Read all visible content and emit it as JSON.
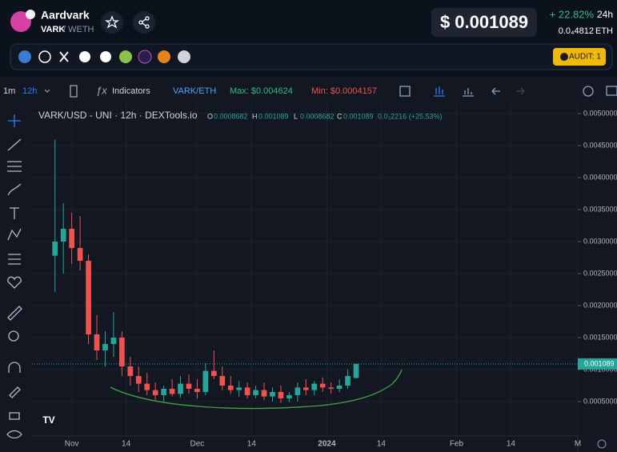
{
  "header": {
    "name": "Aardvark",
    "symbol": "VARK",
    "pair": "/ WETH",
    "price": "$ 0.001089",
    "change": "+ 22.82%",
    "period": "24h",
    "eth_price": "0.0₄4812",
    "eth": "ETH",
    "audit": "AUDIT: 1"
  },
  "toolbar": {
    "interval_1": "1m",
    "interval_2": "12h",
    "indicators": "Indicators",
    "pair": "VARK/ETH",
    "max": "Max: $0.004624",
    "min": "Min: $0.0004157"
  },
  "chart_data": {
    "type": "candlestick",
    "title": "VARK/USD - UNI · 12h · DEXTools.io",
    "ohlc": {
      "o_label": "O",
      "open": 0.0008682,
      "h_label": "H",
      "high": 0.001089,
      "l_label": "L",
      "low": 0.0008682,
      "c_label": "C",
      "close": 0.001089,
      "change": "0.0₃2216 (+25.53%)"
    },
    "last_price": 0.001089,
    "up_color": "#26a69a",
    "down_color": "#ef5350",
    "x": [
      -4,
      -2,
      0,
      2,
      4,
      6,
      8,
      10,
      12,
      14,
      16,
      18,
      20,
      22,
      24,
      26,
      28,
      30,
      32,
      34,
      36,
      38,
      40,
      42,
      44,
      46,
      48,
      50,
      52,
      54,
      56,
      58,
      60,
      62,
      64,
      66,
      68
    ],
    "candles": [
      [
        0.00278,
        0.00459,
        0.00221,
        0.003
      ],
      [
        0.003,
        0.0036,
        0.0025,
        0.0032
      ],
      [
        0.0032,
        0.00345,
        0.00265,
        0.0029
      ],
      [
        0.0029,
        0.0034,
        0.00255,
        0.0027
      ],
      [
        0.0027,
        0.0028,
        0.0014,
        0.00155
      ],
      [
        0.00155,
        0.00185,
        0.00115,
        0.0013
      ],
      [
        0.0013,
        0.0016,
        0.00105,
        0.0014
      ],
      [
        0.0014,
        0.0019,
        0.0012,
        0.0015
      ],
      [
        0.0015,
        0.0016,
        0.0009,
        0.00105
      ],
      [
        0.00105,
        0.0012,
        0.00075,
        0.0009
      ],
      [
        0.0009,
        0.00105,
        0.00065,
        0.00078
      ],
      [
        0.00078,
        0.00095,
        0.0006,
        0.00068
      ],
      [
        0.00068,
        0.0008,
        0.00052,
        0.0006
      ],
      [
        0.0006,
        0.00075,
        0.0005,
        0.0007
      ],
      [
        0.0007,
        0.00085,
        0.00058,
        0.00062
      ],
      [
        0.00062,
        0.0009,
        0.00056,
        0.00078
      ],
      [
        0.00078,
        0.00092,
        0.00062,
        0.0007
      ],
      [
        0.0007,
        0.00085,
        0.00055,
        0.00065
      ],
      [
        0.00065,
        0.0011,
        0.0006,
        0.00098
      ],
      [
        0.00098,
        0.0013,
        0.00085,
        0.0009
      ],
      [
        0.0009,
        0.00105,
        0.00068,
        0.00075
      ],
      [
        0.00075,
        0.0009,
        0.00062,
        0.00068
      ],
      [
        0.00068,
        0.00082,
        0.00058,
        0.00072
      ],
      [
        0.00072,
        0.0008,
        0.00055,
        0.0006
      ],
      [
        0.0006,
        0.00075,
        0.00055,
        0.00068
      ],
      [
        0.00068,
        0.0008,
        0.00052,
        0.00058
      ],
      [
        0.00058,
        0.00072,
        0.0005,
        0.00065
      ],
      [
        0.00065,
        0.00075,
        0.00048,
        0.00055
      ],
      [
        0.00055,
        0.00065,
        0.00049,
        0.0006
      ],
      [
        0.0006,
        0.0008,
        0.0005,
        0.00072
      ],
      [
        0.00072,
        0.00085,
        0.0006,
        0.00068
      ],
      [
        0.00068,
        0.00082,
        0.0006,
        0.00078
      ],
      [
        0.00078,
        0.00088,
        0.00065,
        0.00072
      ],
      [
        0.00072,
        0.0008,
        0.00062,
        0.0007
      ],
      [
        0.0007,
        0.00085,
        0.00065,
        0.00075
      ],
      [
        0.00075,
        0.001,
        0.0007,
        0.0009
      ],
      [
        0.0008682,
        0.001089,
        0.0008682,
        0.001089
      ]
    ],
    "xlim": [
      -9.5,
      121
    ],
    "xticks": [
      {
        "value": 0,
        "label": "Nov"
      },
      {
        "value": 13,
        "label": "14"
      },
      {
        "value": 30,
        "label": "Dec"
      },
      {
        "value": 43,
        "label": "14"
      },
      {
        "value": 61,
        "label": "2024"
      },
      {
        "value": 74,
        "label": "14"
      },
      {
        "value": 92,
        "label": "Feb"
      },
      {
        "value": 105,
        "label": "14"
      },
      {
        "value": 121,
        "label": "M"
      }
    ],
    "ylim": [
      -3.75e-05,
      0.00515
    ],
    "yticks": [
      {
        "value": 0.005,
        "label": "0.0050000"
      },
      {
        "value": 0.0045,
        "label": "0.0045000"
      },
      {
        "value": 0.004,
        "label": "0.0040000"
      },
      {
        "value": 0.0035,
        "label": "0.0035000"
      },
      {
        "value": 0.003,
        "label": "0.0030000"
      },
      {
        "value": 0.0025,
        "label": "0.0025000"
      },
      {
        "value": 0.002,
        "label": "0.0020000"
      },
      {
        "value": 0.0015,
        "label": "0.0015000"
      },
      {
        "value": 0.001,
        "label": "0.0010000"
      },
      {
        "value": 0.0005,
        "label": "0.0005000"
      }
    ],
    "grid": true
  }
}
